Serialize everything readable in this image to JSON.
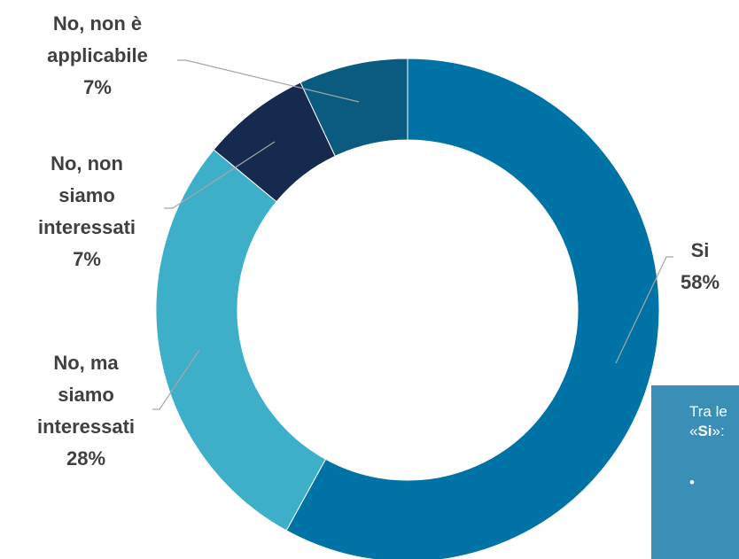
{
  "chart_data": {
    "type": "donut",
    "categories": [
      "Si",
      "No, ma siamo interessati",
      "No, non siamo interessati",
      "No, non è applicabile"
    ],
    "values": [
      58,
      28,
      7,
      7
    ],
    "value_labels": [
      "58%",
      "28%",
      "7%",
      "7%"
    ],
    "colors": [
      "#0073a6",
      "#3eafc9",
      "#152a4e",
      "#0b5b81"
    ]
  },
  "note_box": {
    "line1": "Tra le",
    "line2_open": "«",
    "line2_bold": "Si",
    "line2_close": "»:",
    "bullet": "•"
  }
}
